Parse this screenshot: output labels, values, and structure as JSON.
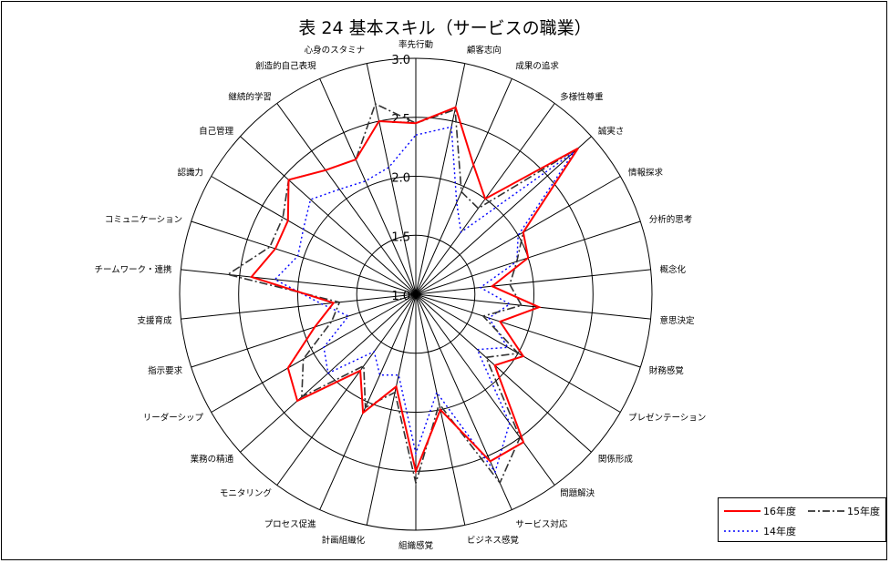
{
  "chart_data": {
    "type": "radar",
    "title": "表 24 基本スキル（サービスの職業）",
    "categories": [
      "率先行動",
      "顧客志向",
      "成果の追求",
      "多様性尊重",
      "誠実さ",
      "情報探求",
      "分析的思考",
      "概念化",
      "意思決定",
      "財務感覚",
      "プレゼンテーション",
      "関係形成",
      "問題解決",
      "サービス対応",
      "ビジネス感覚",
      "組織感覚",
      "計画組織化",
      "プロセス促進",
      "モニタリング",
      "業務の精通",
      "リーダーシップ",
      "指示要求",
      "支援育成",
      "チームワーク・連携",
      "コミュニケーション",
      "認識力",
      "自己管理",
      "継続的学習",
      "創造的自己表現",
      "心身のスタミナ"
    ],
    "r_ticks": [
      "1.0",
      "1.5",
      "2.0",
      "2.5",
      "3.0"
    ],
    "rlim": [
      1.0,
      3.0
    ],
    "grid": true,
    "legend_position": "bottom-right",
    "series": [
      {
        "name": "16年度",
        "color": "#ff0000",
        "dash": "solid",
        "values": [
          2.45,
          2.62,
          2.2,
          2.0,
          2.85,
          2.05,
          2.0,
          1.65,
          2.05,
          1.75,
          2.05,
          1.9,
          2.55,
          2.55,
          2.0,
          2.5,
          1.8,
          2.1,
          1.8,
          2.35,
          2.25,
          1.9,
          1.7,
          2.4,
          2.25,
          2.25,
          2.45,
          2.3,
          2.25,
          2.5
        ]
      },
      {
        "name": "15年度",
        "color": "#333333",
        "dash": "dashdot",
        "values": [
          2.45,
          2.6,
          1.95,
          1.9,
          2.85,
          2.05,
          1.9,
          1.8,
          1.9,
          1.6,
          2.0,
          1.8,
          2.5,
          2.75,
          1.95,
          2.6,
          1.85,
          2.05,
          1.75,
          2.3,
          2.1,
          1.75,
          1.65,
          2.6,
          2.3,
          2.3,
          2.45,
          2.3,
          2.25,
          2.65
        ]
      },
      {
        "name": "14年度",
        "color": "#0000ff",
        "dash": "dot",
        "values": [
          2.35,
          2.45,
          1.85,
          1.65,
          2.8,
          2.0,
          1.9,
          1.55,
          1.8,
          1.65,
          1.9,
          1.7,
          2.35,
          2.65,
          1.85,
          2.35,
          1.7,
          1.75,
          1.6,
          2.0,
          1.9,
          1.6,
          1.8,
          2.2,
          2.05,
          2.1,
          2.2,
          2.1,
          2.05,
          2.1
        ]
      }
    ]
  }
}
